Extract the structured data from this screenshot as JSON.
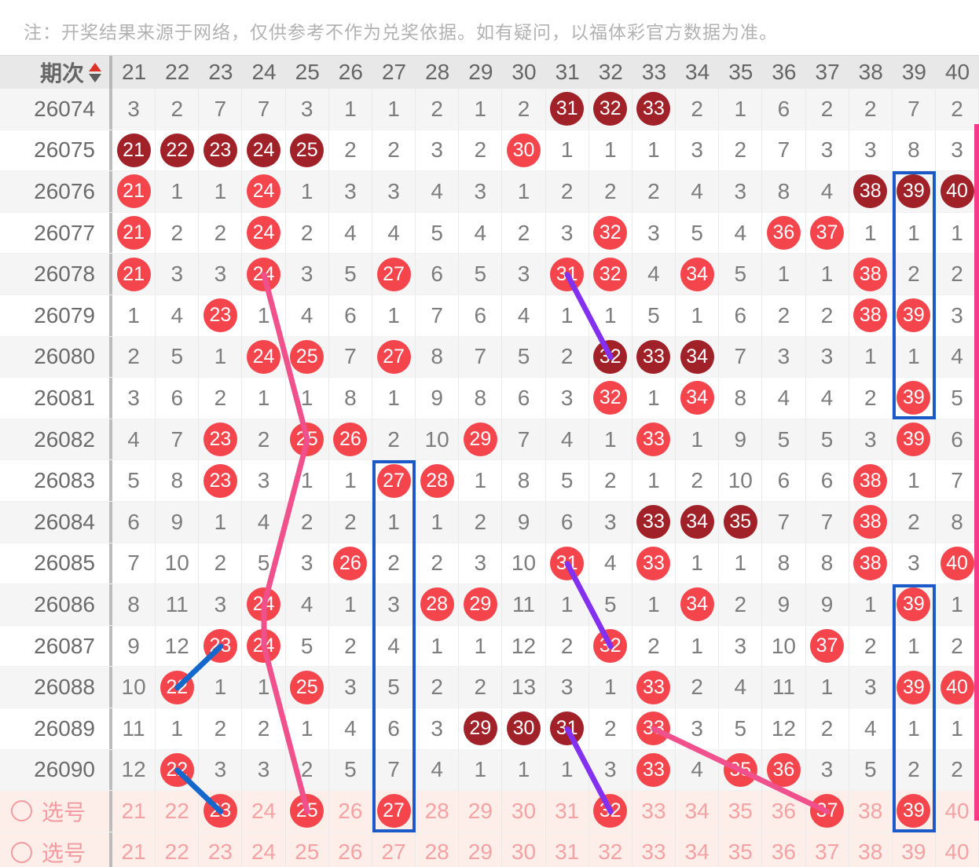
{
  "disclaimer": "注：开奖结果来源于网络，仅供参考不作为兑奖依据。如有疑问，以福体彩官方数据为准。",
  "header": {
    "label": "期次",
    "sort_icons": [
      "sort-up-icon",
      "sort-down-icon"
    ],
    "columns": [
      "21",
      "22",
      "23",
      "24",
      "25",
      "26",
      "27",
      "28",
      "29",
      "30",
      "31",
      "32",
      "33",
      "34",
      "35",
      "36",
      "37",
      "38",
      "39",
      "40"
    ]
  },
  "legend_cell_format": "plain string = miss count, N* = drawn ball (bright red), N** = drawn ball (dark red)",
  "rows": [
    {
      "period": "26074",
      "cells": [
        "3",
        "2",
        "7",
        "7",
        "3",
        "1",
        "1",
        "2",
        "1",
        "2",
        "31**",
        "32**",
        "33**",
        "2",
        "1",
        "6",
        "2",
        "2",
        "7",
        "2"
      ]
    },
    {
      "period": "26075",
      "cells": [
        "21**",
        "22**",
        "23**",
        "24**",
        "25**",
        "2",
        "2",
        "3",
        "2",
        "30*",
        "1",
        "1",
        "1",
        "3",
        "2",
        "7",
        "3",
        "3",
        "8",
        "3"
      ]
    },
    {
      "period": "26076",
      "cells": [
        "21*",
        "1",
        "1",
        "24*",
        "1",
        "3",
        "3",
        "4",
        "3",
        "1",
        "2",
        "2",
        "2",
        "4",
        "3",
        "8",
        "4",
        "38**",
        "39**",
        "40**"
      ]
    },
    {
      "period": "26077",
      "cells": [
        "21*",
        "2",
        "2",
        "24*",
        "2",
        "4",
        "4",
        "5",
        "4",
        "2",
        "3",
        "32*",
        "3",
        "5",
        "4",
        "36*",
        "37*",
        "1",
        "1",
        "1"
      ]
    },
    {
      "period": "26078",
      "cells": [
        "21*",
        "3",
        "3",
        "24*",
        "3",
        "5",
        "27*",
        "6",
        "5",
        "3",
        "31*",
        "32*",
        "4",
        "34*",
        "5",
        "1",
        "1",
        "38*",
        "2",
        "2"
      ]
    },
    {
      "period": "26079",
      "cells": [
        "1",
        "4",
        "23*",
        "1",
        "4",
        "6",
        "1",
        "7",
        "6",
        "4",
        "1",
        "1",
        "5",
        "1",
        "6",
        "2",
        "2",
        "38*",
        "39*",
        "3"
      ]
    },
    {
      "period": "26080",
      "cells": [
        "2",
        "5",
        "1",
        "24*",
        "25*",
        "7",
        "27*",
        "8",
        "7",
        "5",
        "2",
        "32**",
        "33**",
        "34**",
        "7",
        "3",
        "3",
        "1",
        "1",
        "4"
      ]
    },
    {
      "period": "26081",
      "cells": [
        "3",
        "6",
        "2",
        "1",
        "1",
        "8",
        "1",
        "9",
        "8",
        "6",
        "3",
        "32*",
        "1",
        "34*",
        "8",
        "4",
        "4",
        "2",
        "39*",
        "5"
      ]
    },
    {
      "period": "26082",
      "cells": [
        "4",
        "7",
        "23*",
        "2",
        "25*",
        "26*",
        "2",
        "10",
        "29*",
        "7",
        "4",
        "1",
        "33*",
        "1",
        "9",
        "5",
        "5",
        "3",
        "39*",
        "6"
      ]
    },
    {
      "period": "26083",
      "cells": [
        "5",
        "8",
        "23*",
        "3",
        "1",
        "1",
        "27*",
        "28*",
        "1",
        "8",
        "5",
        "2",
        "1",
        "2",
        "10",
        "6",
        "6",
        "38*",
        "1",
        "7"
      ]
    },
    {
      "period": "26084",
      "cells": [
        "6",
        "9",
        "1",
        "4",
        "2",
        "2",
        "1",
        "1",
        "2",
        "9",
        "6",
        "3",
        "33**",
        "34**",
        "35**",
        "7",
        "7",
        "38*",
        "2",
        "8"
      ]
    },
    {
      "period": "26085",
      "cells": [
        "7",
        "10",
        "2",
        "5",
        "3",
        "26*",
        "2",
        "2",
        "3",
        "10",
        "31*",
        "4",
        "33*",
        "1",
        "1",
        "8",
        "8",
        "38*",
        "3",
        "40*"
      ]
    },
    {
      "period": "26086",
      "cells": [
        "8",
        "11",
        "3",
        "24*",
        "4",
        "1",
        "3",
        "28*",
        "29*",
        "11",
        "1",
        "5",
        "1",
        "34*",
        "2",
        "9",
        "9",
        "1",
        "39*",
        "1"
      ]
    },
    {
      "period": "26087",
      "cells": [
        "9",
        "12",
        "23*",
        "24*",
        "5",
        "2",
        "4",
        "1",
        "1",
        "12",
        "2",
        "32*",
        "2",
        "1",
        "3",
        "10",
        "37*",
        "2",
        "1",
        "2"
      ]
    },
    {
      "period": "26088",
      "cells": [
        "10",
        "22*",
        "1",
        "1",
        "25*",
        "3",
        "5",
        "2",
        "2",
        "13",
        "3",
        "1",
        "33*",
        "2",
        "4",
        "11",
        "1",
        "3",
        "39*",
        "40*"
      ]
    },
    {
      "period": "26089",
      "cells": [
        "11",
        "1",
        "2",
        "2",
        "1",
        "4",
        "6",
        "3",
        "29**",
        "30**",
        "31**",
        "2",
        "33*",
        "3",
        "5",
        "12",
        "2",
        "4",
        "1",
        "1"
      ]
    },
    {
      "period": "26090",
      "cells": [
        "12",
        "22*",
        "3",
        "3",
        "2",
        "5",
        "7",
        "4",
        "1",
        "1",
        "1",
        "3",
        "33*",
        "4",
        "35*",
        "36*",
        "3",
        "5",
        "2",
        "2"
      ]
    }
  ],
  "selection_rows": [
    {
      "label": "选号",
      "cells": [
        "21",
        "22",
        "23*",
        "24",
        "25*",
        "26",
        "27*",
        "28",
        "29",
        "30",
        "31",
        "32*",
        "33",
        "34",
        "35",
        "36",
        "37*",
        "38",
        "39*",
        "40"
      ]
    },
    {
      "label": "选号",
      "cells": [
        "21",
        "22",
        "23",
        "24",
        "25",
        "26",
        "27",
        "28",
        "29",
        "30",
        "31",
        "32",
        "33",
        "34",
        "35",
        "36",
        "37",
        "38",
        "39",
        "40"
      ]
    }
  ],
  "highlight_boxes": [
    {
      "col": 39,
      "row_start": 2,
      "row_end": 8
    },
    {
      "col": 27,
      "row_start": 9,
      "row_end": 18
    },
    {
      "col": 39,
      "row_start": 12,
      "row_end": 18
    }
  ],
  "trend_lines": [
    {
      "color": "#f0508c",
      "points": [
        [
          24,
          4
        ],
        [
          25,
          8
        ],
        [
          24,
          12
        ],
        [
          24,
          13
        ],
        [
          25,
          17
        ]
      ]
    },
    {
      "color": "#f0508c",
      "points": [
        [
          33,
          15
        ],
        [
          37,
          17
        ]
      ]
    },
    {
      "color": "#8430f0",
      "points": [
        [
          31,
          4
        ],
        [
          32,
          6
        ]
      ]
    },
    {
      "color": "#8430f0",
      "points": [
        [
          31,
          11
        ],
        [
          32,
          13
        ]
      ]
    },
    {
      "color": "#8430f0",
      "points": [
        [
          31,
          15
        ],
        [
          32,
          17
        ]
      ]
    },
    {
      "color": "#1468cc",
      "points": [
        [
          23,
          13
        ],
        [
          22,
          14
        ]
      ]
    },
    {
      "color": "#1468cc",
      "points": [
        [
          22,
          16
        ],
        [
          23,
          17
        ]
      ]
    }
  ],
  "colors": {
    "ball_bright": "#f4454c",
    "ball_dark": "#a02127",
    "selection_text": "#f4a2a4",
    "selection_bg": "#fdeee9",
    "highlight_box": "#1c59c8",
    "scroll_indicator": "#f53a88",
    "header_bg": "#e8e8e8",
    "row_shade": "#f5f5f5"
  }
}
